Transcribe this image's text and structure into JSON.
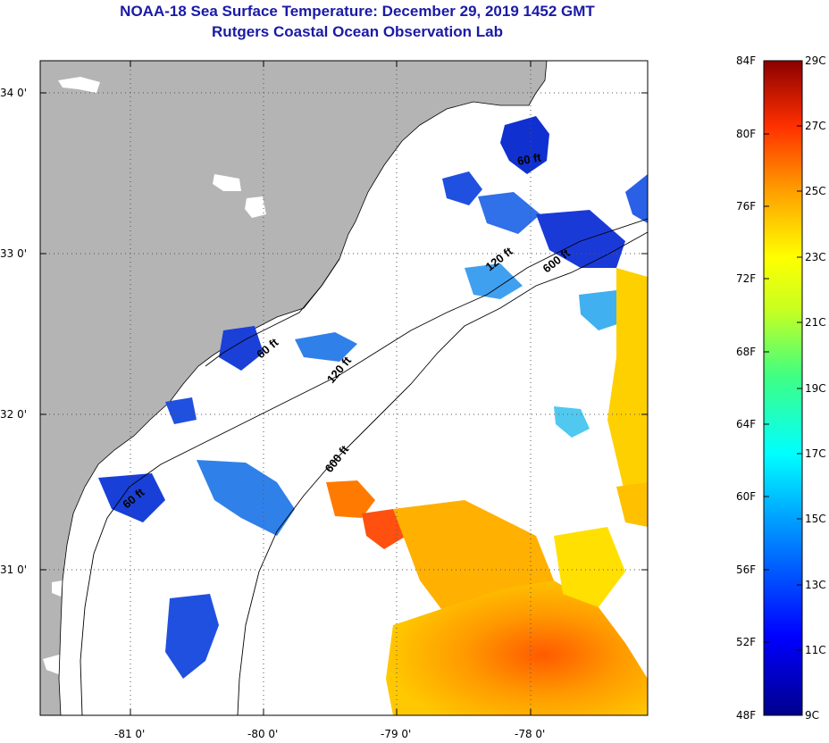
{
  "header": {
    "title": "NOAA-18 Sea Surface Temperature:  December 29, 2019 1452 GMT",
    "subtitle": "Rutgers Coastal Ocean Observation Lab"
  },
  "axes": {
    "lat_ticks": [
      "34 0'",
      "33 0'",
      "32 0'",
      "31 0'"
    ],
    "lon_ticks": [
      "-81 0'",
      "-80 0'",
      "-79 0'",
      "-78 0'"
    ]
  },
  "isobaths": [
    {
      "label": "120 ft"
    },
    {
      "label": "120 ft"
    },
    {
      "label": "600 ft"
    },
    {
      "label": "600 ft"
    },
    {
      "label": "60 ft"
    },
    {
      "label": "60 ft"
    },
    {
      "label": "60 ft"
    }
  ],
  "colorbar": {
    "fahrenheit": [
      "84F",
      "80F",
      "76F",
      "72F",
      "68F",
      "64F",
      "60F",
      "56F",
      "52F",
      "48F"
    ],
    "celsius": [
      "29C",
      "27C",
      "25C",
      "23C",
      "21C",
      "19C",
      "17C",
      "15C",
      "13C",
      "11C",
      "9C"
    ]
  },
  "colors": {
    "land": "#b4b4b4",
    "title": "#1a1aa6"
  }
}
